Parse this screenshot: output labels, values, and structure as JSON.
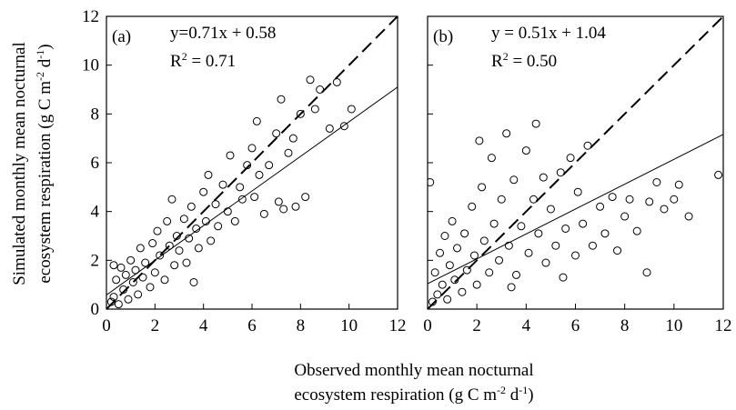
{
  "chart_data": [
    {
      "type": "scatter",
      "panel_label": "(a)",
      "equation": "y=0.71x + 0.58",
      "r2": [
        "R",
        "2",
        " = 0.71"
      ],
      "fit": {
        "slope": 0.71,
        "intercept": 0.58
      },
      "show_ytick_labels": true,
      "xlim": [
        0,
        12
      ],
      "ylim": [
        0,
        12
      ],
      "xticks": [
        0,
        2,
        4,
        6,
        8,
        10,
        12
      ],
      "yticks": [
        0,
        2,
        4,
        6,
        8,
        10,
        12
      ],
      "series": [
        {
          "color": "#000000",
          "x": [
            0.2,
            0.3,
            0.4,
            0.5,
            0.6,
            0.7,
            0.8,
            0.9,
            1.0,
            1.1,
            1.2,
            1.3,
            1.4,
            1.5,
            1.6,
            1.8,
            1.9,
            2.0,
            2.1,
            2.2,
            2.4,
            2.5,
            2.6,
            2.8,
            2.9,
            3.0,
            3.2,
            3.3,
            3.4,
            3.5,
            3.7,
            3.8,
            4.0,
            4.1,
            4.2,
            4.3,
            4.5,
            4.6,
            4.8,
            5.0,
            5.1,
            5.3,
            5.5,
            5.6,
            5.8,
            6.0,
            6.1,
            6.2,
            6.3,
            6.5,
            6.7,
            7.0,
            7.1,
            7.2,
            7.3,
            7.5,
            7.7,
            7.8,
            8.0,
            8.2,
            8.4,
            8.6,
            8.8,
            9.2,
            9.5,
            9.8,
            10.1,
            3.6,
            0.3,
            2.7
          ],
          "values": [
            0.3,
            0.5,
            1.2,
            0.2,
            1.7,
            0.8,
            1.4,
            0.4,
            2.0,
            1.1,
            1.6,
            0.6,
            2.5,
            1.3,
            1.9,
            0.9,
            2.7,
            1.5,
            3.2,
            2.2,
            1.2,
            3.6,
            2.6,
            1.8,
            3.0,
            2.4,
            3.7,
            1.9,
            2.9,
            4.2,
            3.3,
            2.5,
            4.8,
            3.6,
            5.5,
            2.8,
            4.3,
            3.4,
            5.1,
            4.0,
            6.3,
            3.6,
            5.0,
            4.5,
            5.9,
            6.6,
            4.6,
            7.7,
            5.5,
            3.9,
            5.9,
            7.2,
            4.4,
            8.6,
            4.1,
            6.4,
            7.0,
            4.2,
            8.0,
            4.6,
            9.4,
            8.2,
            9.0,
            7.4,
            9.3,
            7.5,
            8.2,
            1.1,
            1.8,
            4.5
          ]
        }
      ]
    },
    {
      "type": "scatter",
      "panel_label": "(b)",
      "equation": "y = 0.51x + 1.04",
      "r2": [
        "R",
        "2",
        " = 0.50"
      ],
      "fit": {
        "slope": 0.51,
        "intercept": 1.04
      },
      "show_ytick_labels": false,
      "xlim": [
        0,
        12
      ],
      "ylim": [
        0,
        12
      ],
      "xticks": [
        0,
        2,
        4,
        6,
        8,
        10,
        12
      ],
      "yticks": [
        0,
        2,
        4,
        6,
        8,
        10,
        12
      ],
      "series": [
        {
          "color": "#000000",
          "x": [
            0.1,
            0.2,
            0.3,
            0.4,
            0.5,
            0.6,
            0.7,
            0.8,
            0.9,
            1.0,
            1.1,
            1.2,
            1.4,
            1.5,
            1.6,
            1.8,
            1.9,
            2.0,
            2.2,
            2.3,
            2.5,
            2.6,
            2.7,
            2.9,
            3.0,
            3.2,
            3.3,
            3.5,
            3.6,
            3.8,
            4.0,
            4.1,
            4.3,
            4.4,
            4.5,
            4.7,
            4.8,
            5.0,
            5.2,
            5.4,
            5.6,
            5.8,
            6.0,
            6.1,
            6.3,
            6.5,
            6.7,
            7.0,
            7.2,
            7.5,
            7.7,
            8.0,
            8.2,
            8.5,
            8.9,
            9.0,
            9.3,
            9.6,
            10.0,
            10.2,
            10.6,
            11.8,
            5.5,
            3.4,
            2.1
          ],
          "values": [
            5.2,
            0.3,
            1.5,
            0.6,
            2.3,
            1.0,
            3.0,
            0.4,
            1.8,
            3.6,
            1.2,
            2.5,
            0.7,
            3.1,
            1.6,
            4.2,
            2.2,
            1.0,
            5.0,
            2.8,
            1.5,
            6.2,
            3.5,
            2.0,
            4.5,
            7.2,
            2.6,
            5.3,
            1.4,
            3.4,
            6.5,
            2.3,
            4.5,
            7.6,
            3.1,
            5.4,
            1.9,
            4.1,
            2.6,
            5.6,
            3.3,
            6.2,
            2.2,
            4.8,
            3.5,
            6.7,
            2.6,
            4.2,
            3.1,
            4.6,
            2.4,
            3.8,
            4.5,
            3.2,
            1.5,
            4.4,
            5.2,
            4.1,
            4.5,
            5.1,
            3.8,
            5.5,
            1.3,
            0.9,
            6.9
          ]
        }
      ]
    }
  ],
  "shared": {
    "y_label": [
      [
        "Simulated monthly mean nocturnal"
      ],
      [
        "ecosystem respiration (g C m",
        "-2",
        " d",
        "-1",
        ")"
      ]
    ],
    "x_label": [
      [
        "Observed monthly mean nocturnal"
      ],
      [
        "ecosystem respiration (g C m",
        "-2",
        " d",
        "-1",
        ")"
      ]
    ]
  }
}
